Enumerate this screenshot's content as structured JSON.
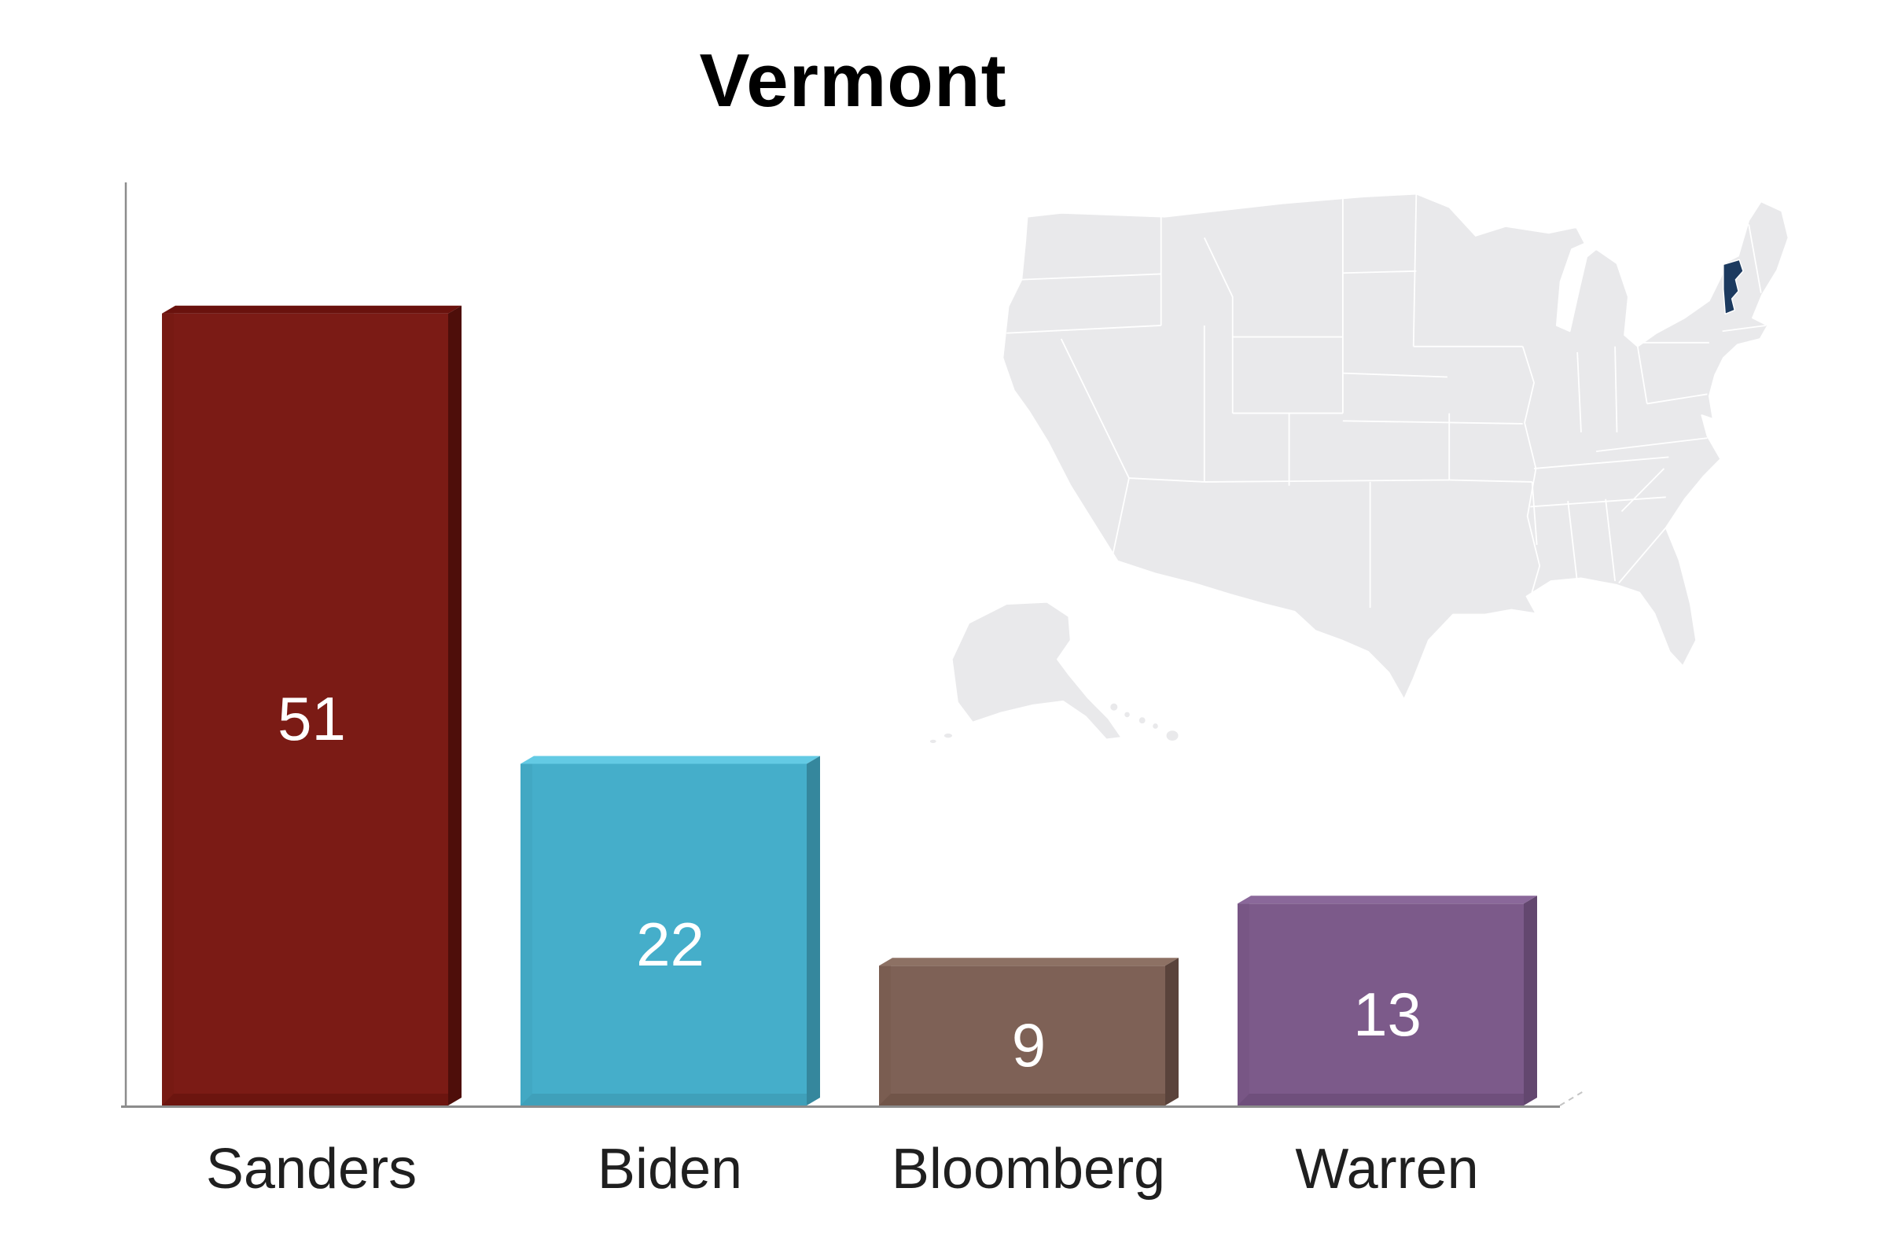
{
  "title": "Vermont",
  "chart_data": {
    "type": "bar",
    "title": "Vermont",
    "categories": [
      "Sanders",
      "Biden",
      "Bloomberg",
      "Warren"
    ],
    "values": [
      51,
      22,
      9,
      13
    ],
    "xlabel": "",
    "ylabel": "",
    "ylim": [
      0,
      59
    ],
    "grid": false,
    "legend": false,
    "bar_style": "3d-extruded",
    "value_label_position": "inside-center",
    "value_label_color": "#ffffff",
    "category_label_color": "#1f1f1f",
    "axis_color": "#8c8c8c",
    "axis_depth_tick_color": "#c4c4c4",
    "bar_colors": [
      {
        "name": "Sanders",
        "front": "#7B1B15",
        "top": "#6A120D",
        "side": "#4E0E0A",
        "bevel": "#6C150F",
        "sliver": "#771A13"
      },
      {
        "name": "Biden",
        "front": "#45AECA",
        "top": "#63CAE4",
        "side": "#35879D",
        "bevel": "#3FA0BA",
        "sliver": "#42A8C3"
      },
      {
        "name": "Bloomberg",
        "front": "#7E6156",
        "top": "#8D7164",
        "side": "#5A433B",
        "bevel": "#715549",
        "sliver": "#7A5D51"
      },
      {
        "name": "Warren",
        "front": "#7C5A8A",
        "top": "#8A689A",
        "side": "#63476F",
        "bevel": "#6F4F7C",
        "sliver": "#785685"
      }
    ]
  },
  "map": {
    "name": "united-states",
    "highlight_state": "Vermont",
    "highlight_color": "#1C3A5F",
    "state_fill": "#E9E9EB",
    "border_color": "#FFFFFF"
  }
}
